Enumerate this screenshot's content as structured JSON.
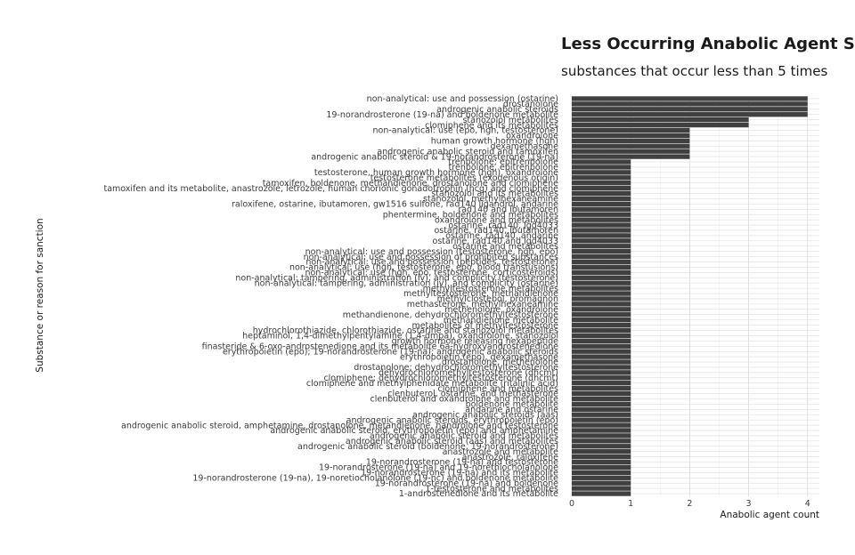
{
  "chart_data": {
    "type": "bar",
    "orientation": "horizontal",
    "title": "Less Occurring Anabolic Agent Sanc",
    "subtitle": "substances that occur less than 5 times",
    "xlabel": "Anabolic agent count",
    "ylabel": "Substance or reason for sanction",
    "xlim": [
      0,
      4.2
    ],
    "xticks": [
      0,
      1,
      2,
      3,
      4
    ],
    "grid": true,
    "bar_color": "#404040",
    "categories": [
      "non-analytical: use and possession (ostarine)",
      "drostanolone",
      "androgenic anabolic steroids",
      "19-norandrosterone (19-na) and boldenone metabolite",
      "stanozolol metabolites",
      "clomiphene and its metabolites",
      "non-analytical: use (epo, hgh, testosterone)",
      "oxandrolone",
      "human growth hormone (hgh)",
      "dexamethasone",
      "androgenic anabolic steroid and tamoxifen",
      "androgenic anabolic steroid & 19-norandrosterone (19-na)",
      "trenbolone; epitrenbolone",
      "trenbolone, epitrenbolone",
      "testosterone, human growth hormone (hgh), oxandrolone",
      "testosterone metabolites (exogenous origin)",
      "tamoxifen, boldenone, methandienone, drostanolone and clomiphene",
      "tamoxifen and its metabolite, anastrozole, letrozole, human chorionic gonadotrophin (hcg) and clomiphene",
      "stanozolol and its metabolites",
      "stanozolol, methylhexaneamine",
      "raloxifene, ostarine, ibutamoren, gw1516 sulfone, rad140 ligandrol, andarine",
      "rad140 and ibutamoren",
      "phentermine, boldenone and metabolites",
      "oxandrolone and metabolites",
      "ostarine, rad140, lgd4033",
      "ostarine, rad140, ibutamoren",
      "ostarine, rad140, andarine",
      "ostarine, rad140 and lgd4033",
      "ostarine and metabolites",
      "non-analytical: use and possession (testosterone, hgh, epo)",
      "non-analytical: use and possession of prohibited substances",
      "non-analytical: use and possession (peptides, testosterone)",
      "non-analytical: use (hgh, testosterone, epo, blood transfusions)",
      "non-analytical: use (hgh, epo, testosterone, corticosteroids)",
      "non-analytical: tampering, administration (iv), and complicity (testosterone)",
      "non-analytical: tampering, administration (iv), and complicity (ostarine)",
      "methyltestosterone metabolites",
      "methyltestosterone, methandienone",
      "methylclostebol, promagnon",
      "methasterone, methylhexaneamine",
      "methenolone, oxandrolone",
      "methandienone, dehydrochloromethyltestosterone",
      "methandienone metabolite",
      "metabolites of methyltestosterone",
      "hydrochlorothiazide, chlorothiazide, ostarine and stanozolol metabolites",
      "heptaminol, 1,4-dimethylpentylamine (1,4-dmpa), oxandrolone, stanozolol",
      "growth hormone releasing hexapeptide",
      "finasteride & 6-oxo-androstenedione and its metabolite 6a-hydroxyandrostenedione",
      "erythropoietin (epo); 19-norandrosterone (19-na); androgenic anabolic steroids",
      "erythropoietin (epo), dexamethasone",
      "drostanolone, methenolone",
      "drostanolone; dehydrochloromethyltestosterone",
      "dehydrochloromethyltestosterone (dhcmt)",
      "clomiphene; dehydrochloromethyltestosterone (dhcmt)",
      "clomiphene and methylphenidate metabolite (ritalinic acid)",
      "clomiphene and metabolites",
      "clenbuterol, ostarine, and methasterone",
      "clenbuterol and oxandrolone and metabolite",
      "boldenone metabolite",
      "andarine and ostarine",
      "androgenic anabolic steroids (aas)",
      "androgenic anabolic steroids, erythropoietin (epo)",
      "androgenic anabolic steroid, amphetamine, drostanolone, metandienone, nandrolone and testosterone",
      "androgenic anabolic steroid, erythropoietin (epo) and amphetamine",
      "androgenic anabolic steroid and metabolites",
      "androgenic anabolic steroid (aas) and metabolites",
      "androgenic anabolic steroid (boldenone, 19-norandrosterone)",
      "anastrozole and metabolite",
      "anastrozole, raloxifene",
      "19-norandrosterone (19-na) and testosterone",
      "19-norandrosterone (19-na) and 19-norethiocholanolone",
      "19-norandrosterone (19-na) and its metabolite",
      "19-norandrosterone (19-na), 19-noretiocholanolone (19-nc) and boldenone metabolite",
      "19-norandrosterone (19-na) and boldenone",
      "1-testosterone and metabolites",
      "1-androstenedione and its metabolite"
    ],
    "values": [
      4,
      4,
      4,
      4,
      3,
      3,
      2,
      2,
      2,
      2,
      2,
      2,
      1,
      1,
      1,
      1,
      1,
      1,
      1,
      1,
      1,
      1,
      1,
      1,
      1,
      1,
      1,
      1,
      1,
      1,
      1,
      1,
      1,
      1,
      1,
      1,
      1,
      1,
      1,
      1,
      1,
      1,
      1,
      1,
      1,
      1,
      1,
      1,
      1,
      1,
      1,
      1,
      1,
      1,
      1,
      1,
      1,
      1,
      1,
      1,
      1,
      1,
      1,
      1,
      1,
      1,
      1,
      1,
      1,
      1,
      1,
      1,
      1,
      1,
      1,
      1
    ]
  }
}
